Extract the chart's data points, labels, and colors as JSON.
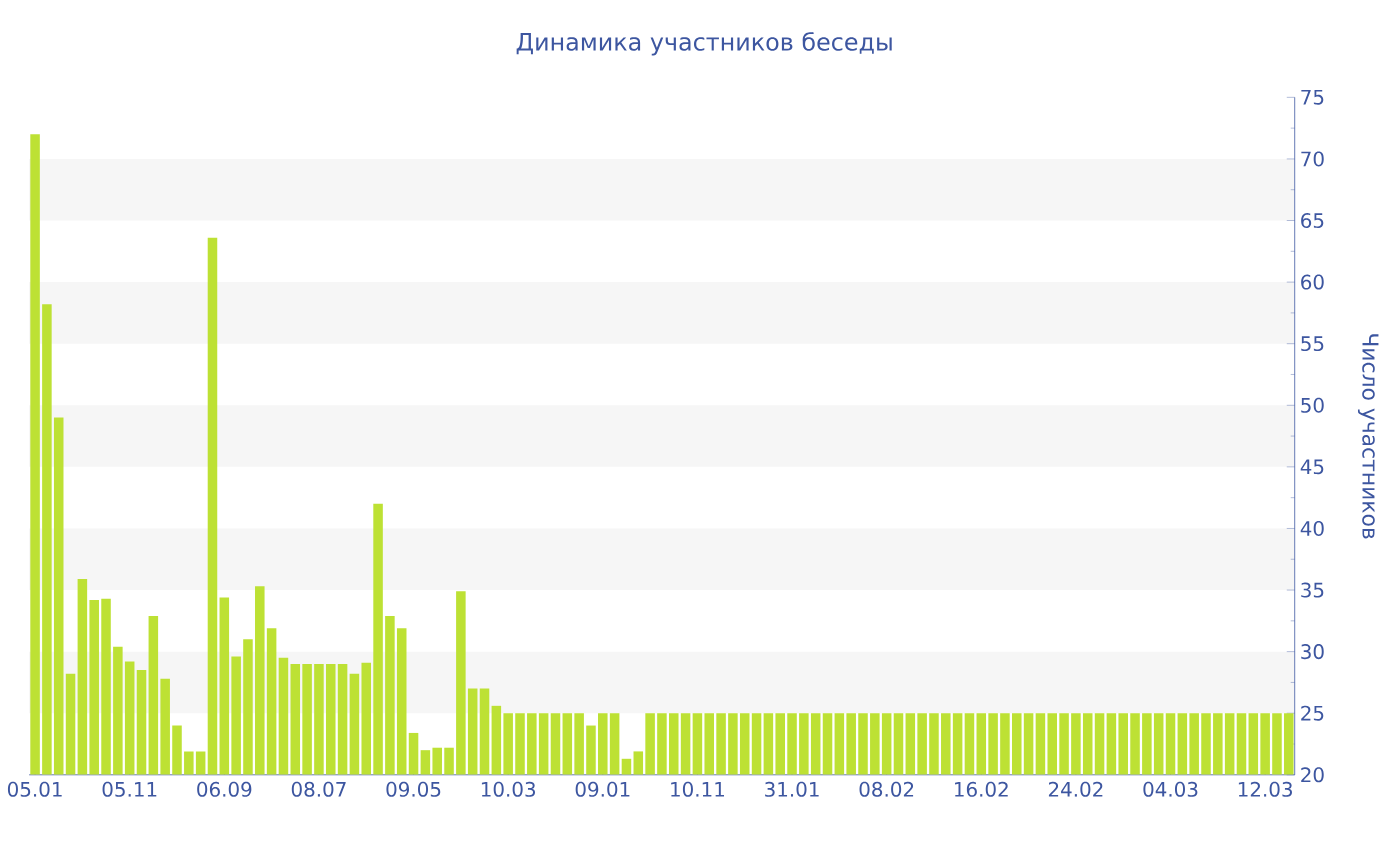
{
  "chart_data": {
    "type": "bar",
    "title": "Динамика участников беседы",
    "ylabel": "Число участников",
    "categories": [
      "05.01",
      null,
      null,
      null,
      null,
      null,
      null,
      null,
      "05.11",
      null,
      null,
      null,
      null,
      null,
      null,
      null,
      "06.09",
      null,
      null,
      null,
      null,
      null,
      null,
      null,
      "08.07",
      null,
      null,
      null,
      null,
      null,
      null,
      null,
      "09.05",
      null,
      null,
      null,
      null,
      null,
      null,
      null,
      "10.03",
      null,
      null,
      null,
      null,
      null,
      null,
      null,
      "09.01",
      null,
      null,
      null,
      null,
      null,
      null,
      null,
      "10.11",
      null,
      null,
      null,
      null,
      null,
      null,
      null,
      "31.01",
      null,
      null,
      null,
      null,
      null,
      null,
      null,
      "08.02",
      null,
      null,
      null,
      null,
      null,
      null,
      null,
      "16.02",
      null,
      null,
      null,
      null,
      null,
      null,
      null,
      "24.02",
      null,
      null,
      null,
      null,
      null,
      null,
      null,
      "04.03",
      null,
      null,
      null,
      null,
      null,
      null,
      null,
      "12.03",
      null,
      null
    ],
    "values": [
      72,
      58.2,
      49,
      28.2,
      35.9,
      34.2,
      34.3,
      30.4,
      29.2,
      28.5,
      32.9,
      27.8,
      24,
      21.9,
      21.9,
      63.6,
      34.4,
      29.6,
      31,
      35.3,
      31.9,
      29.5,
      29,
      29,
      29,
      29,
      29,
      28.2,
      29.1,
      42,
      32.9,
      31.9,
      23.4,
      22,
      22.2,
      22.2,
      34.9,
      27,
      27,
      25.6,
      25,
      25,
      25,
      25,
      25,
      25,
      25,
      24,
      25,
      25,
      21.3,
      21.9,
      25,
      25,
      25,
      25,
      25,
      25,
      25,
      25,
      25,
      25,
      25,
      25,
      25,
      25,
      25,
      25,
      25,
      25,
      25,
      25,
      25,
      25,
      25,
      25,
      25,
      25,
      25,
      25,
      25,
      25,
      25,
      25,
      25,
      25,
      25,
      25,
      25,
      25,
      25,
      25,
      25,
      25,
      25,
      25,
      25,
      25,
      25,
      25,
      25,
      25,
      25,
      25,
      25,
      25,
      25
    ],
    "color": "#bde134",
    "ylim": [
      20,
      75
    ],
    "yticks": [
      20,
      25,
      30,
      35,
      40,
      45,
      50,
      55,
      60,
      65,
      70,
      75
    ],
    "bands": [
      {
        "axis": "y",
        "from": 25,
        "to": 30,
        "color": "#f6f6f6"
      },
      {
        "axis": "y",
        "from": 35,
        "to": 40,
        "color": "#f6f6f6"
      },
      {
        "axis": "y",
        "from": 45,
        "to": 50,
        "color": "#f6f6f6"
      },
      {
        "axis": "y",
        "from": 55,
        "to": 60,
        "color": "#f6f6f6"
      },
      {
        "axis": "y",
        "from": 65,
        "to": 70,
        "color": "#f6f6f6"
      }
    ]
  }
}
